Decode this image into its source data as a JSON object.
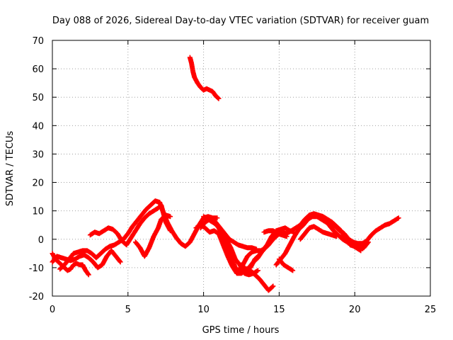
{
  "chart_data": {
    "type": "scatter",
    "title": "Day 088 of 2026, Sidereal Day-to-day VTEC variation (SDTVAR) for receiver guam",
    "xlabel": "GPS time / hours",
    "ylabel": "SDTVAR / TECUs",
    "xlim": [
      0,
      25
    ],
    "ylim": [
      -20,
      70
    ],
    "x_ticks": [
      "0",
      "5",
      "10",
      "15",
      "20",
      "25"
    ],
    "y_ticks": [
      "-20",
      "-10",
      "0",
      "10",
      "20",
      "30",
      "40",
      "50",
      "60",
      "70"
    ],
    "grid": true,
    "marker": "+",
    "color": "#ff0000",
    "series": [
      {
        "name": "track-1",
        "points": [
          [
            0.0,
            -5
          ],
          [
            0.2,
            -7
          ],
          [
            0.4,
            -8
          ],
          [
            0.6,
            -9
          ],
          [
            0.8,
            -10
          ],
          [
            1.0,
            -11
          ],
          [
            1.2,
            -10.5
          ],
          [
            1.4,
            -9
          ],
          [
            1.6,
            -8.5
          ],
          [
            1.8,
            -9
          ],
          [
            2.0,
            -9
          ],
          [
            2.2,
            -11
          ],
          [
            2.4,
            -12.5
          ]
        ]
      },
      {
        "name": "track-2",
        "points": [
          [
            0.0,
            -8
          ],
          [
            0.3,
            -6
          ],
          [
            0.6,
            -6.5
          ],
          [
            0.9,
            -7
          ],
          [
            1.2,
            -7.5
          ],
          [
            1.5,
            -7
          ],
          [
            1.8,
            -6
          ],
          [
            2.1,
            -5.5
          ],
          [
            2.4,
            -6.5
          ],
          [
            2.7,
            -8
          ],
          [
            3.0,
            -10
          ],
          [
            3.3,
            -9
          ],
          [
            3.6,
            -6
          ],
          [
            3.9,
            -4
          ],
          [
            4.2,
            -6
          ],
          [
            4.5,
            -8
          ]
        ]
      },
      {
        "name": "track-3",
        "points": [
          [
            0.5,
            -10.5
          ],
          [
            0.8,
            -9
          ],
          [
            1.1,
            -7
          ],
          [
            1.4,
            -5
          ],
          [
            1.7,
            -4.5
          ],
          [
            2.0,
            -4
          ],
          [
            2.3,
            -4
          ],
          [
            2.6,
            -5
          ],
          [
            2.9,
            -6.5
          ],
          [
            3.2,
            -5
          ],
          [
            3.5,
            -3.5
          ],
          [
            3.8,
            -2.5
          ],
          [
            4.1,
            -2
          ],
          [
            4.4,
            -1
          ],
          [
            4.7,
            0
          ],
          [
            5.0,
            2
          ],
          [
            5.3,
            4.5
          ],
          [
            5.6,
            6.5
          ],
          [
            5.9,
            8.5
          ],
          [
            6.2,
            10.5
          ],
          [
            6.5,
            12
          ],
          [
            6.8,
            13.5
          ],
          [
            7.1,
            13
          ],
          [
            7.3,
            10
          ],
          [
            7.6,
            6
          ],
          [
            7.9,
            3
          ],
          [
            8.2,
            0.5
          ],
          [
            8.5,
            -1.5
          ],
          [
            8.8,
            -2.5
          ],
          [
            9.1,
            -1
          ],
          [
            9.4,
            2
          ],
          [
            9.7,
            5
          ],
          [
            10.0,
            7.5
          ],
          [
            10.3,
            8
          ],
          [
            10.6,
            7.5
          ],
          [
            10.9,
            7.5
          ]
        ]
      },
      {
        "name": "track-4",
        "points": [
          [
            2.5,
            1.5
          ],
          [
            2.8,
            2.5
          ],
          [
            3.1,
            2
          ],
          [
            3.4,
            3
          ],
          [
            3.7,
            4
          ],
          [
            4.0,
            3.5
          ],
          [
            4.3,
            2
          ],
          [
            4.6,
            -0.5
          ],
          [
            4.9,
            -2
          ],
          [
            5.2,
            0.5
          ],
          [
            5.5,
            3
          ],
          [
            5.8,
            5.5
          ],
          [
            6.1,
            7.5
          ],
          [
            6.4,
            9
          ],
          [
            6.7,
            10
          ],
          [
            7.0,
            11
          ],
          [
            7.2,
            12
          ],
          [
            7.3,
            10
          ],
          [
            7.5,
            6
          ],
          [
            7.8,
            3
          ]
        ]
      },
      {
        "name": "track-5",
        "points": [
          [
            5.5,
            -1
          ],
          [
            5.8,
            -3
          ],
          [
            6.1,
            -6
          ],
          [
            6.4,
            -3
          ],
          [
            6.7,
            1
          ],
          [
            7.0,
            4
          ],
          [
            7.2,
            7
          ],
          [
            7.5,
            8.5
          ],
          [
            7.8,
            8
          ]
        ]
      },
      {
        "name": "track-6",
        "points": [
          [
            9.1,
            64
          ],
          [
            9.2,
            62
          ],
          [
            9.3,
            59
          ],
          [
            9.4,
            57
          ],
          [
            9.6,
            55
          ],
          [
            9.8,
            53.5
          ],
          [
            10.0,
            52.5
          ],
          [
            10.2,
            53
          ],
          [
            10.4,
            52.5
          ],
          [
            10.6,
            52
          ],
          [
            10.8,
            50.5
          ],
          [
            11.0,
            49.5
          ]
        ]
      },
      {
        "name": "track-7",
        "points": [
          [
            9.8,
            4
          ],
          [
            10.1,
            6
          ],
          [
            10.4,
            7
          ],
          [
            10.7,
            6
          ],
          [
            11.0,
            4
          ],
          [
            11.3,
            1
          ],
          [
            11.6,
            -3
          ],
          [
            11.9,
            -7
          ],
          [
            12.1,
            -10
          ],
          [
            12.3,
            -11
          ],
          [
            12.6,
            -9
          ],
          [
            12.9,
            -6
          ],
          [
            13.2,
            -4.5
          ],
          [
            13.5,
            -4
          ],
          [
            13.8,
            -4
          ],
          [
            14.1,
            -3
          ]
        ]
      },
      {
        "name": "track-8",
        "points": [
          [
            9.5,
            4
          ],
          [
            9.8,
            5
          ],
          [
            10.1,
            4
          ],
          [
            10.4,
            2.5
          ],
          [
            10.7,
            3
          ],
          [
            11.0,
            2
          ],
          [
            11.3,
            -2
          ],
          [
            11.6,
            -6
          ],
          [
            11.9,
            -9.5
          ],
          [
            12.2,
            -12
          ],
          [
            12.5,
            -12
          ],
          [
            12.8,
            -11
          ],
          [
            13.1,
            -11
          ],
          [
            13.4,
            -12.5
          ],
          [
            13.7,
            -14
          ],
          [
            14.0,
            -16
          ],
          [
            14.3,
            -18
          ],
          [
            14.6,
            -16.5
          ]
        ]
      },
      {
        "name": "track-9",
        "points": [
          [
            10.5,
            7.5
          ],
          [
            10.8,
            6
          ],
          [
            11.1,
            4
          ],
          [
            11.4,
            2
          ],
          [
            11.7,
            0
          ],
          [
            12.0,
            -1
          ],
          [
            12.3,
            -2
          ],
          [
            12.6,
            -2.5
          ],
          [
            12.9,
            -3
          ],
          [
            13.2,
            -3
          ],
          [
            13.5,
            -3.5
          ]
        ]
      },
      {
        "name": "track-10",
        "points": [
          [
            10.0,
            8
          ],
          [
            10.3,
            7
          ],
          [
            10.6,
            6
          ],
          [
            10.9,
            5
          ],
          [
            11.2,
            3
          ],
          [
            11.5,
            0
          ],
          [
            11.8,
            -3
          ],
          [
            12.1,
            -7
          ],
          [
            12.4,
            -9
          ],
          [
            12.7,
            -12
          ],
          [
            13.0,
            -12.5
          ],
          [
            13.3,
            -12
          ],
          [
            13.6,
            -11
          ]
        ]
      },
      {
        "name": "track-11",
        "points": [
          [
            12.5,
            -9
          ],
          [
            12.8,
            -10.5
          ],
          [
            13.1,
            -10
          ],
          [
            13.4,
            -7
          ],
          [
            13.7,
            -5.5
          ],
          [
            14.0,
            -3.5
          ],
          [
            14.3,
            -2
          ],
          [
            14.6,
            0
          ],
          [
            14.9,
            1.5
          ],
          [
            15.2,
            2.5
          ],
          [
            15.5,
            2
          ],
          [
            15.8,
            3
          ],
          [
            16.1,
            4
          ],
          [
            16.4,
            5
          ],
          [
            16.7,
            7
          ],
          [
            17.0,
            8.5
          ],
          [
            17.3,
            9
          ],
          [
            17.6,
            8.5
          ],
          [
            17.9,
            8
          ],
          [
            18.2,
            7
          ],
          [
            18.5,
            6
          ],
          [
            18.8,
            4.5
          ],
          [
            19.1,
            3
          ],
          [
            19.4,
            0
          ],
          [
            19.7,
            -2
          ],
          [
            20.0,
            -2.5
          ],
          [
            20.3,
            -3
          ],
          [
            20.6,
            -3
          ],
          [
            20.9,
            -1
          ]
        ]
      },
      {
        "name": "track-12",
        "points": [
          [
            13.0,
            -10
          ],
          [
            13.3,
            -8
          ],
          [
            13.6,
            -6.5
          ],
          [
            13.9,
            -4
          ],
          [
            14.2,
            -2
          ],
          [
            14.5,
            1
          ],
          [
            14.8,
            3
          ],
          [
            15.1,
            3.5
          ],
          [
            15.4,
            4
          ],
          [
            15.7,
            3
          ],
          [
            16.0,
            2.5
          ]
        ]
      },
      {
        "name": "track-13",
        "points": [
          [
            14.8,
            -9
          ],
          [
            15.1,
            -7
          ],
          [
            15.4,
            -5
          ],
          [
            15.7,
            -2
          ],
          [
            16.0,
            1
          ],
          [
            16.3,
            3.5
          ],
          [
            16.6,
            5
          ],
          [
            16.9,
            7
          ],
          [
            17.2,
            8
          ],
          [
            17.5,
            8
          ],
          [
            17.8,
            7
          ],
          [
            18.1,
            6
          ],
          [
            18.4,
            5.5
          ],
          [
            18.7,
            4.5
          ],
          [
            19.0,
            3
          ],
          [
            19.3,
            2
          ],
          [
            19.6,
            0
          ],
          [
            19.9,
            -1
          ],
          [
            20.2,
            -1.5
          ],
          [
            20.5,
            -1.5
          ],
          [
            20.8,
            -0.5
          ],
          [
            21.1,
            1.5
          ],
          [
            21.4,
            3
          ],
          [
            21.7,
            4
          ],
          [
            22.0,
            5
          ],
          [
            22.3,
            5.5
          ],
          [
            22.6,
            6.5
          ],
          [
            22.9,
            7.5
          ]
        ]
      },
      {
        "name": "track-14",
        "points": [
          [
            15.0,
            -7
          ],
          [
            15.3,
            -9
          ],
          [
            15.6,
            -10
          ],
          [
            15.9,
            -11
          ]
        ]
      },
      {
        "name": "track-15",
        "points": [
          [
            14.0,
            2.5
          ],
          [
            14.3,
            3
          ],
          [
            14.6,
            3
          ],
          [
            14.9,
            2
          ],
          [
            15.2,
            1.5
          ],
          [
            15.5,
            1
          ]
        ]
      },
      {
        "name": "track-16",
        "points": [
          [
            16.4,
            0
          ],
          [
            16.7,
            2
          ],
          [
            17.0,
            4
          ],
          [
            17.3,
            4.5
          ],
          [
            17.6,
            3.5
          ],
          [
            17.9,
            2.5
          ],
          [
            18.2,
            2
          ],
          [
            18.5,
            1.5
          ],
          [
            18.8,
            1
          ]
        ]
      },
      {
        "name": "track-17",
        "points": [
          [
            18.0,
            7
          ],
          [
            18.3,
            5
          ],
          [
            18.6,
            3
          ],
          [
            18.9,
            1.5
          ],
          [
            19.2,
            0
          ],
          [
            19.5,
            -1
          ],
          [
            19.8,
            -2
          ],
          [
            20.1,
            -3
          ],
          [
            20.4,
            -4
          ]
        ]
      }
    ]
  }
}
